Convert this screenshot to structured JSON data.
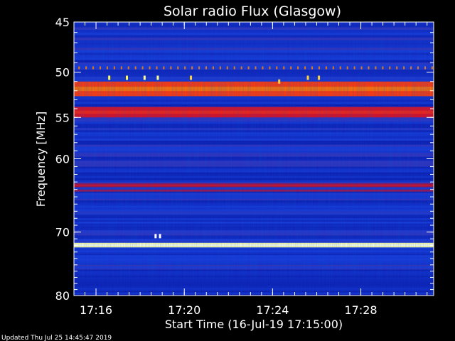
{
  "chart_data": {
    "type": "heatmap",
    "title": "Solar radio Flux (Glasgow)",
    "ylabel": "Frequency [MHz]",
    "xlabel": "Start Time (16-Jul-19 17:15:00)",
    "footer": "Updated Thu Jul 25 14:45:47 2019",
    "y_axis": {
      "range": [
        45,
        80
      ],
      "inverted": true,
      "major_ticks": [
        "45",
        "50",
        "55",
        "60",
        "70",
        "80"
      ],
      "tick_values": [
        45,
        50,
        55,
        60,
        70,
        80
      ],
      "minor_tick_step": 1,
      "scale": "log"
    },
    "x_axis": {
      "start_time": "17:15:00",
      "range_minutes": [
        0,
        16.3
      ],
      "major_ticks": [
        "17:16",
        "17:20",
        "17:24",
        "17:28"
      ],
      "tick_minutes": [
        1,
        5,
        9,
        13
      ],
      "minor_tick_step_minutes": 0.5
    },
    "colormap": [
      "#00003a",
      "#0a10a0",
      "#1a3ad8",
      "#a01040",
      "#ff1010",
      "#ff8800",
      "#ffff60",
      "#ffffff"
    ],
    "background_level": 0.25,
    "bands": [
      {
        "freq_from": 51.0,
        "freq_to": 52.6,
        "level": 0.62
      },
      {
        "freq_from": 53.8,
        "freq_to": 55.0,
        "level": 0.52
      },
      {
        "freq_from": 63.2,
        "freq_to": 63.7,
        "level": 0.45
      },
      {
        "freq_from": 64.0,
        "freq_to": 64.3,
        "level": 0.4
      },
      {
        "freq_from": 71.6,
        "freq_to": 72.3,
        "level": 0.92
      },
      {
        "freq_from": 49.4,
        "freq_to": 49.7,
        "level": 0.7,
        "dashed": true
      }
    ],
    "bursts": [
      {
        "minute": 1.6,
        "freq": 50.6,
        "level": 0.85
      },
      {
        "minute": 2.4,
        "freq": 50.6,
        "level": 0.85
      },
      {
        "minute": 3.2,
        "freq": 50.6,
        "level": 0.9
      },
      {
        "minute": 3.8,
        "freq": 50.6,
        "level": 0.9
      },
      {
        "minute": 5.3,
        "freq": 50.6,
        "level": 0.8
      },
      {
        "minute": 10.6,
        "freq": 50.6,
        "level": 0.8
      },
      {
        "minute": 11.1,
        "freq": 50.6,
        "level": 0.8
      },
      {
        "minute": 9.3,
        "freq": 51.0,
        "level": 0.8
      },
      {
        "minute": 3.7,
        "freq": 70.6,
        "level": 1.0
      },
      {
        "minute": 3.9,
        "freq": 70.6,
        "level": 1.0
      }
    ]
  }
}
